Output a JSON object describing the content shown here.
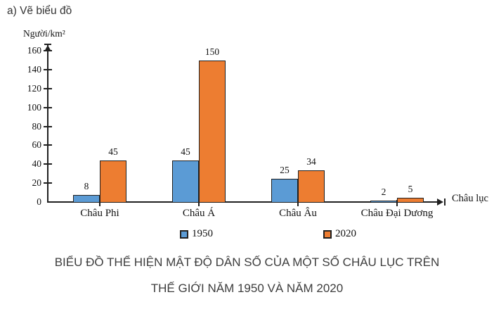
{
  "page": {
    "header_note": "a) Vẽ biểu đồ"
  },
  "chart_data": {
    "type": "bar",
    "title": "BIỂU ĐỒ THỂ HIỆN MẬT ĐỘ DÂN SỐ CỦA MỘT SỐ CHÂU LỤC TRÊN THẾ GIỚI NĂM 1950 VÀ NĂM 2020",
    "categories": [
      "Châu Phi",
      "Châu Á",
      "Châu Âu",
      "Châu Đại Dương"
    ],
    "series": [
      {
        "name": "1950",
        "color": "#5B9BD5",
        "values": [
          8,
          45,
          25,
          2
        ]
      },
      {
        "name": "2020",
        "color": "#ED7D31",
        "values": [
          45,
          150,
          34,
          5
        ]
      }
    ],
    "ylabel": "Người/km²",
    "xlabel": "Châu lục",
    "yticks": [
      0,
      20,
      40,
      60,
      80,
      100,
      120,
      140,
      160
    ],
    "ylim": [
      0,
      160
    ],
    "grid": false,
    "legend_position": "bottom",
    "bar_border_color": "#202020",
    "value_labels_shown": true
  },
  "caption": {
    "line1": "BIỂU ĐỒ THỂ HIỆN MẬT ĐỘ DÂN SỐ CỦA MỘT SỐ CHÂU LỤC TRÊN",
    "line2": "THẾ GIỚI NĂM 1950 VÀ NĂM 2020"
  },
  "colors": {
    "series_1950": "#5B9BD5",
    "series_2020": "#ED7D31",
    "axis_and_border": "#202020",
    "caption_text": "#3d3d3d",
    "background": "#ffffff"
  }
}
